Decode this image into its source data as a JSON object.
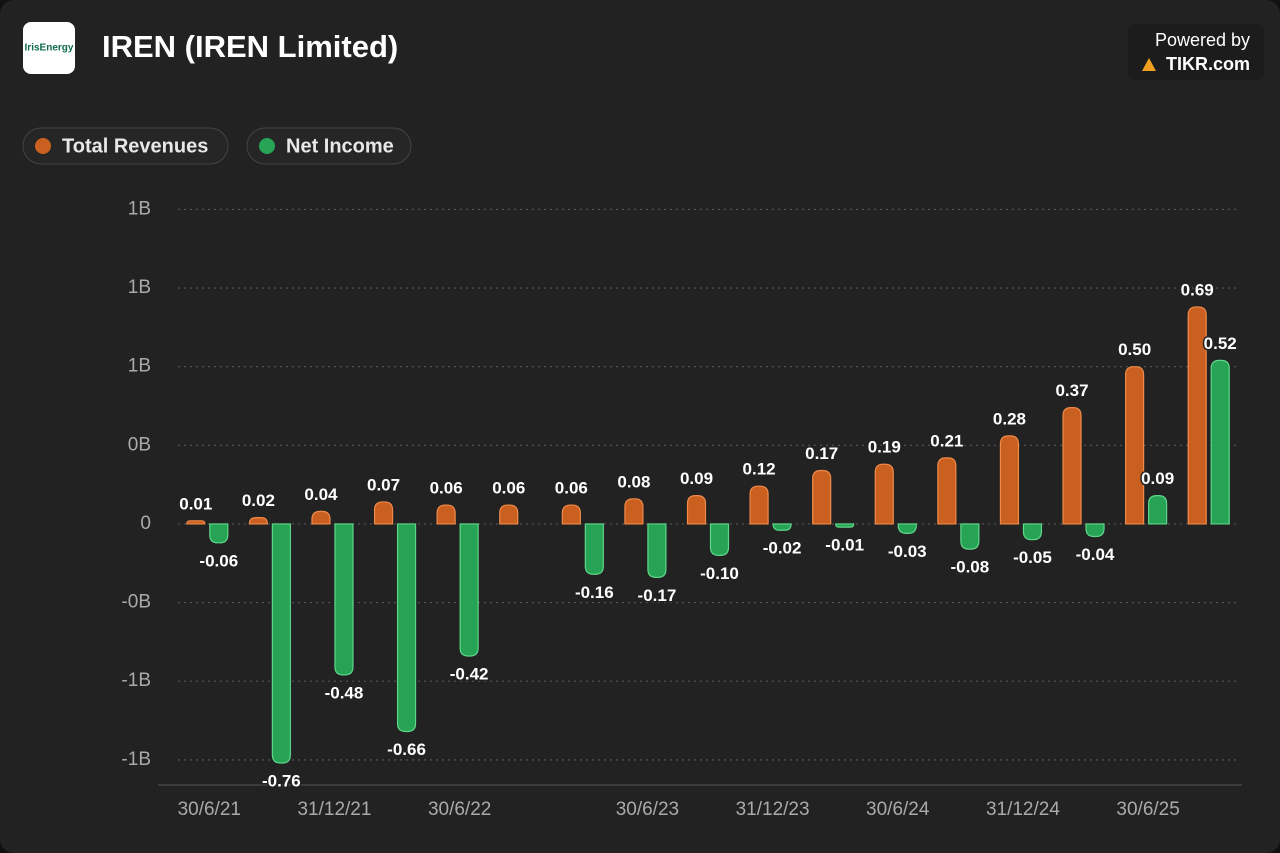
{
  "branding": {
    "logo": "IrisEnergy",
    "powered_by": "Powered by",
    "brand": "TIKR.com"
  },
  "chart_data": {
    "type": "bar",
    "title": "IREN (IREN Limited)",
    "categories": [
      "30/6/21",
      null,
      "31/12/21",
      null,
      "30/6/22",
      null,
      null,
      "30/6/23",
      null,
      "31/12/23",
      null,
      "30/6/24",
      null,
      "31/12/24",
      null,
      "30/6/25",
      null
    ],
    "series": [
      {
        "name": "Total Revenues",
        "color": "#c9601f",
        "values": [
          0.01,
          0.02,
          0.04,
          0.07,
          0.06,
          0.06,
          0.06,
          0.08,
          0.09,
          0.12,
          0.17,
          0.19,
          0.21,
          0.28,
          0.37,
          0.5,
          0.69
        ],
        "value_labels": [
          "0.01",
          "0.02",
          "0.04",
          "0.07",
          "0.06",
          "0.06",
          "0.06",
          "0.08",
          "0.09",
          "0.12",
          "0.17",
          "0.19",
          "0.21",
          "0.28",
          "0.37",
          "0.50",
          "0.69"
        ]
      },
      {
        "name": "Net Income",
        "color": "#27a355",
        "values": [
          -0.06,
          -0.76,
          -0.48,
          -0.66,
          -0.42,
          null,
          -0.16,
          -0.17,
          -0.1,
          -0.02,
          -0.01,
          -0.03,
          -0.08,
          -0.05,
          -0.04,
          0.09,
          0.52
        ],
        "value_labels": [
          "-0.06",
          "-0.76",
          "-0.48",
          "-0.66",
          "-0.42",
          null,
          "-0.16",
          "-0.17",
          "-0.10",
          "-0.02",
          "-0.01",
          "-0.03",
          "-0.08",
          "-0.05",
          "-0.04",
          "0.09",
          "0.52"
        ]
      }
    ],
    "ylim": [
      -0.83,
      1.03
    ],
    "yticks": [
      {
        "value": 1.0,
        "label": "1B"
      },
      {
        "value": 0.75,
        "label": "1B"
      },
      {
        "value": 0.5,
        "label": "1B"
      },
      {
        "value": 0.25,
        "label": "0B"
      },
      0,
      {
        "value": -0.25,
        "label": "-0B"
      },
      {
        "value": -0.5,
        "label": "-1B"
      },
      {
        "value": -0.75,
        "label": "-1B"
      }
    ],
    "grid": true,
    "legend": "top-left"
  }
}
